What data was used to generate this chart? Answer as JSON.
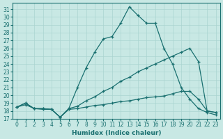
{
  "xlabel": "Humidex (Indice chaleur)",
  "background_color": "#c8e8e4",
  "grid_color": "#aad4d0",
  "line_color": "#1a7070",
  "xlim": [
    -0.5,
    23.5
  ],
  "ylim": [
    17,
    31.8
  ],
  "yticks": [
    17,
    18,
    19,
    20,
    21,
    22,
    23,
    24,
    25,
    26,
    27,
    28,
    29,
    30,
    31
  ],
  "xticks": [
    0,
    1,
    2,
    3,
    4,
    5,
    6,
    7,
    8,
    9,
    10,
    11,
    12,
    13,
    14,
    15,
    16,
    17,
    18,
    19,
    20,
    21,
    22,
    23
  ],
  "series": [
    {
      "x": [
        0,
        1,
        2,
        3,
        4,
        5,
        6,
        7,
        8,
        9,
        10,
        11,
        12,
        13,
        14,
        15,
        16,
        17,
        18,
        19,
        20,
        21,
        22,
        23
      ],
      "y": [
        18.5,
        19.0,
        18.3,
        18.3,
        18.2,
        17.2,
        18.3,
        21.0,
        23.5,
        25.5,
        27.2,
        27.5,
        29.2,
        31.3,
        30.2,
        29.2,
        29.2,
        26.0,
        24.0,
        21.0,
        19.5,
        18.3,
        17.8,
        17.5
      ]
    },
    {
      "x": [
        0,
        1,
        2,
        3,
        4,
        5,
        6,
        7,
        8,
        9,
        10,
        11,
        12,
        13,
        14,
        15,
        16,
        17,
        18,
        19,
        20,
        21,
        22,
        23
      ],
      "y": [
        18.5,
        19.0,
        18.3,
        18.3,
        18.2,
        17.2,
        18.3,
        18.6,
        19.3,
        19.8,
        20.5,
        21.0,
        21.8,
        22.3,
        23.0,
        23.5,
        24.0,
        24.5,
        25.0,
        25.5,
        26.0,
        24.3,
        18.0,
        17.8
      ]
    },
    {
      "x": [
        0,
        1,
        2,
        3,
        4,
        5,
        6,
        7,
        8,
        9,
        10,
        11,
        12,
        13,
        14,
        15,
        16,
        17,
        18,
        19,
        20,
        21,
        22,
        23
      ],
      "y": [
        18.5,
        18.8,
        18.3,
        18.2,
        18.2,
        17.2,
        18.2,
        18.3,
        18.5,
        18.7,
        18.8,
        19.0,
        19.2,
        19.3,
        19.5,
        19.7,
        19.8,
        19.9,
        20.2,
        20.5,
        20.5,
        19.5,
        18.0,
        17.8
      ]
    }
  ]
}
